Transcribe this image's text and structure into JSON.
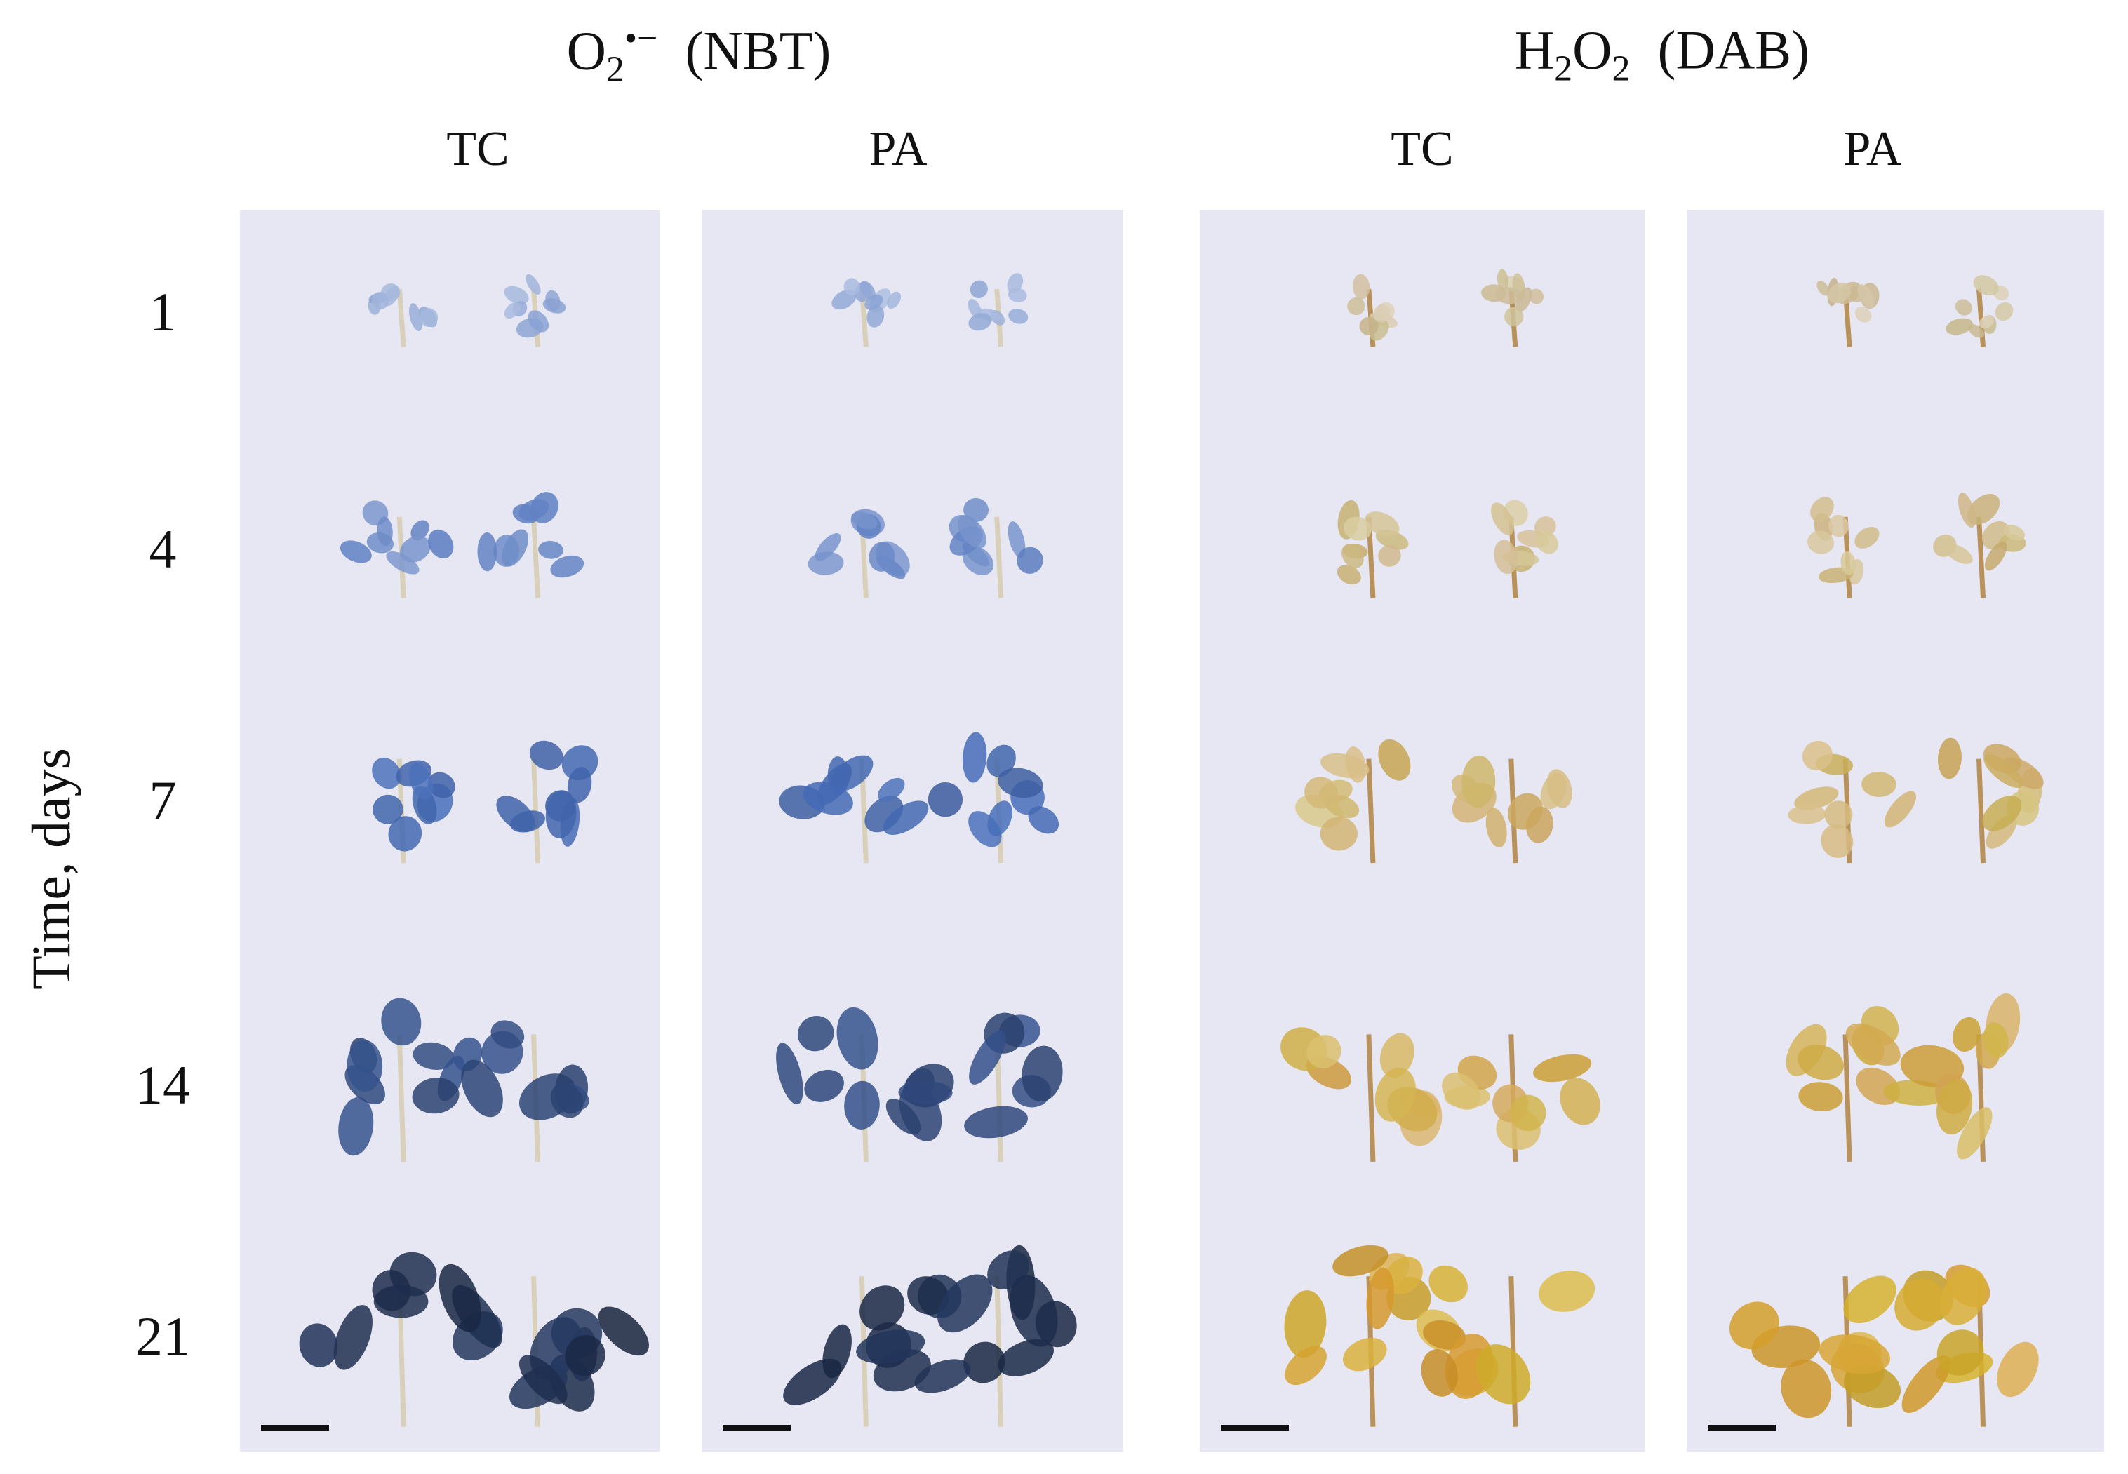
{
  "groups": [
    {
      "parts": [
        "O",
        "2",
        "•−",
        "(NBT)"
      ],
      "columns": [
        "TC",
        "PA"
      ]
    },
    {
      "parts": [
        "H",
        "2",
        "O",
        "2",
        "(DAB)"
      ],
      "columns": [
        "TC",
        "PA"
      ]
    }
  ],
  "rows": [
    "1",
    "4",
    "7",
    "14",
    "21"
  ],
  "axis_label": "Time, days"
}
